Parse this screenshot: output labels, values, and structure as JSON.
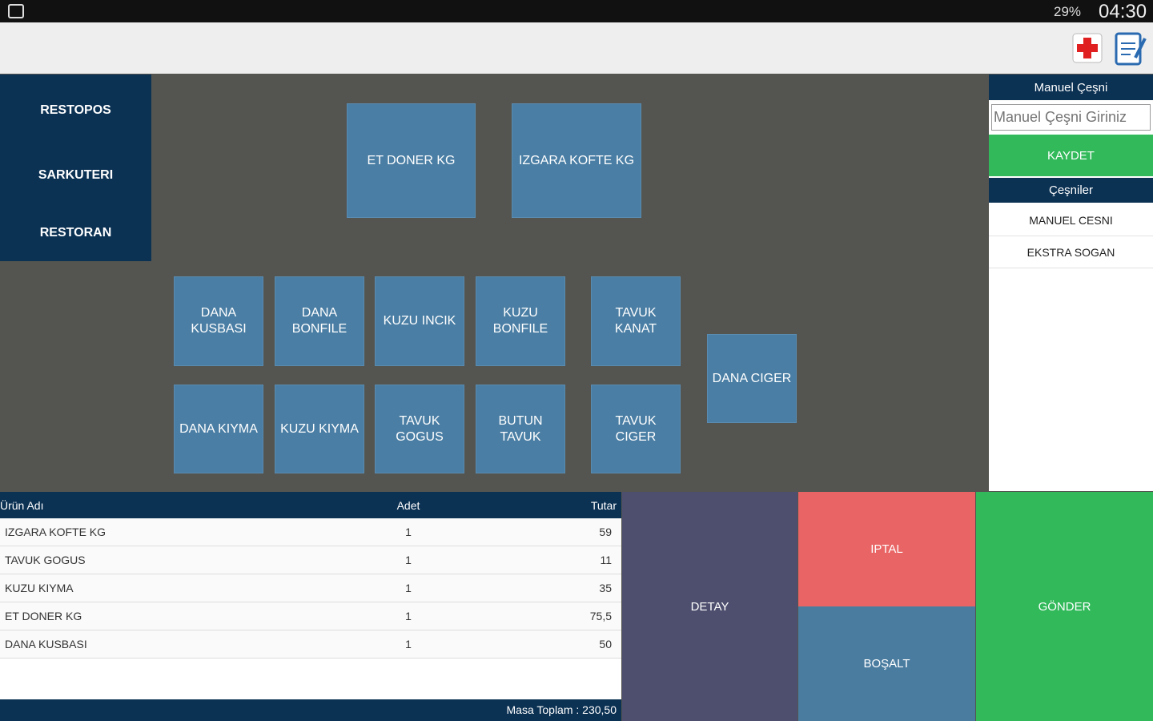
{
  "status_bar": {
    "battery": "29%",
    "time": "04:30"
  },
  "categories": [
    "RESTOPOS",
    "SARKUTERI",
    "RESTORAN"
  ],
  "products": [
    "ET DONER KG",
    "IZGARA KOFTE KG",
    "DANA KUSBASI",
    "DANA BONFILE",
    "KUZU INCIK",
    "KUZU BONFILE",
    "TAVUK KANAT",
    "DANA CIGER",
    "DANA KIYMA",
    "KUZU KIYMA",
    "TAVUK GOGUS",
    "BUTUN TAVUK",
    "TAVUK CIGER"
  ],
  "side_panel": {
    "manual_header": "Manuel Çeşni",
    "input_placeholder": "Manuel Çeşni Giriniz",
    "save_button": "KAYDET",
    "list_header": "Çeşniler",
    "items": [
      "MANUEL CESNI",
      "EKSTRA SOGAN"
    ]
  },
  "table": {
    "columns": [
      "Ürün Adı",
      "Adet",
      "Tutar"
    ],
    "rows": [
      [
        "IZGARA KOFTE KG",
        "1",
        "59"
      ],
      [
        "TAVUK GOGUS",
        "1",
        "11"
      ],
      [
        "KUZU KIYMA",
        "1",
        "35"
      ],
      [
        "ET DONER KG",
        "1",
        "75,5"
      ],
      [
        "DANA KUSBASI",
        "1",
        "50"
      ]
    ],
    "total": "Masa Toplam : 230,50"
  },
  "buttons": {
    "detail": "DETAY",
    "cancel": "IPTAL",
    "clear": "BOŞALT",
    "send": "GÖNDER"
  }
}
